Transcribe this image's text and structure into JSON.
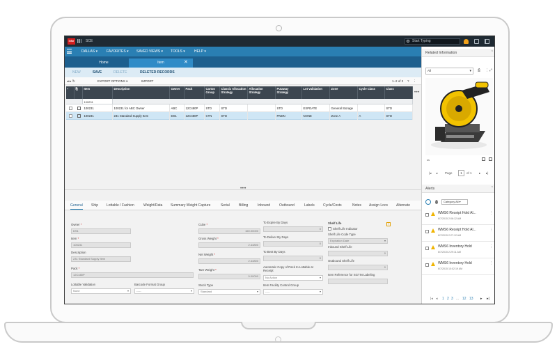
{
  "app": {
    "logo": "infor",
    "name": "SCE",
    "search_placeholder": "Start Typing"
  },
  "nav": [
    "DALLAS ▾",
    "FAVORITES ▾",
    "SAVED VIEWS ▾",
    "TOOLS ▾",
    "HELP ▾"
  ],
  "tabs": {
    "home": "Home",
    "item": "Item",
    "close": "✕"
  },
  "actions": {
    "new": "NEW",
    "save": "SAVE",
    "delete": "DELETE",
    "deleted_records": "DELETED RECORDS"
  },
  "toolbar": {
    "export": "EXPORT OPTIONS ▾",
    "import": "IMPORT",
    "range": "1–2 of 2",
    "help": "?",
    "more": "⋮"
  },
  "grid": {
    "columns": [
      "Item",
      "Description",
      "Owner",
      "Pack",
      "Carton Group",
      "Classic Allocation Strategy",
      "Allocation Strategy",
      "Putaway Strategy",
      "Lot Validation",
      "Zone",
      "Cycle Class",
      "Class"
    ],
    "filter_item": "100231",
    "rows": [
      [
        "100231",
        "100231 for ABC Owner",
        "ABC",
        "12C480P",
        "STD",
        "STD",
        "",
        "STD",
        "EXPDATE",
        "General Storage",
        "",
        "STD"
      ],
      [
        "100231",
        "231 Standard Supply Item",
        "DS1",
        "12C480P",
        "CTN",
        "STD",
        "",
        "PNDN",
        "NONE",
        "Zone A",
        "A",
        "STD"
      ]
    ]
  },
  "splitter_handle": "••••",
  "detail_tabs": [
    "General",
    "Ship",
    "Lottable / Fashion",
    "Weight/Data",
    "Summary Weight Capture",
    "Serial",
    "Billing",
    "Inbound",
    "Outbound",
    "Labels",
    "Cycle/Costs",
    "Notes",
    "Assign Locs",
    "Alternate"
  ],
  "form": {
    "owner_label": "Owner",
    "owner_value": "DS1",
    "item_label": "Item",
    "item_value": "100231",
    "description_label": "Description",
    "description_value": "231 Standard Supply Item",
    "pack_label": "Pack",
    "pack_value": "12C480P",
    "lottable_label": "Lottable Validation",
    "lottable_value": "None",
    "barcode_label": "Barcode Format Group",
    "barcode_value": "-----",
    "cube_label": "Cube",
    "cube_value": "160.00000",
    "gross_label": "Gross Weight",
    "gross_value": "2.44800",
    "net_label": "Net Weight",
    "net_value": "2.44800",
    "tare_label": "Tare Weight",
    "tare_value": "0.00000",
    "stock_label": "Stock Type",
    "stock_value": "Standard",
    "expire_label": "To Expire By Days",
    "expire_value": "0",
    "deliver_label": "To Deliver By Days",
    "deliver_value": "0",
    "best_label": "To Best By Days",
    "best_value": "0",
    "autocopy_label": "Automatic Copy of Pack to Lottable at Receipt",
    "autocopy_value": "No Action",
    "facility_label": "Item Facility Control Group",
    "facility_value": "-----",
    "shelf_life_label": "Shelf Life",
    "shelf_indicator_label": "Shelf Life Indicator",
    "shelf_code_label": "Shelf Life Code Type",
    "shelf_code_value": "Expiration Date",
    "inbound_label": "Inbound Shelf Life",
    "inbound_value": "0",
    "outbound_label": "Outbound Shelf Life",
    "outbound_value": "0",
    "sgtin_label": "Item Reference for SGTIN Labeling",
    "required": "*",
    "help": "?"
  },
  "related": {
    "title": "Related Information",
    "select": "All",
    "image_caption": "ss",
    "page_label": "Page",
    "page_value": "1",
    "page_of": "of 1"
  },
  "alerts": {
    "title": "Alerts",
    "category": "Category All ▾",
    "items": [
      {
        "title": "WMS6 Receipt Hold Al...",
        "date": "6/7/2015 2:06:12 AM"
      },
      {
        "title": "WMS6 Receipt Hold Al...",
        "date": "6/7/2015 2:27:12 AM"
      },
      {
        "title": "WMS6 Inventory Hold",
        "date": "6/7/2015 2:29:11 AM"
      },
      {
        "title": "WMS6 Inventory Hold",
        "date": "6/7/2015 10:02:19 AM"
      }
    ],
    "pager": [
      "1",
      "2",
      "3",
      "...",
      "12",
      "13"
    ]
  },
  "colors": {
    "topbar": "#1f2a33",
    "nav": "#2a7fb3",
    "tabs": "#1d5f8e",
    "selected_row": "#cfe6f5",
    "warn": "#f0b400"
  }
}
